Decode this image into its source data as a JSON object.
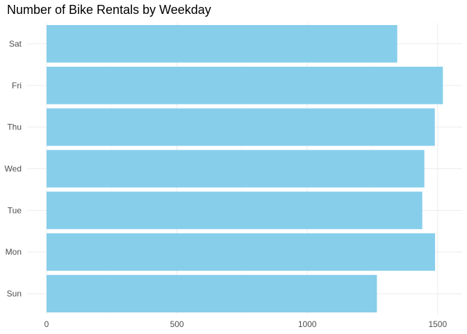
{
  "chart_data": {
    "type": "bar",
    "orientation": "horizontal",
    "title": "Number of Bike Rentals by Weekday",
    "xlabel": "",
    "ylabel": "",
    "categories": [
      "Sun",
      "Mon",
      "Tue",
      "Wed",
      "Thu",
      "Fri",
      "Sat"
    ],
    "values": [
      1267,
      1490,
      1441,
      1449,
      1489,
      1520,
      1345
    ],
    "xlim": [
      0,
      1575
    ],
    "xticks": [
      0,
      500,
      1000,
      1500
    ],
    "grid": true,
    "legend": "none",
    "colors": {
      "bar": "#87CEEB",
      "grid_major": "#ebebeb",
      "grid_minor": "#f3f3f3",
      "tick_text": "#4d4d4d",
      "title_text": "#000000"
    }
  }
}
